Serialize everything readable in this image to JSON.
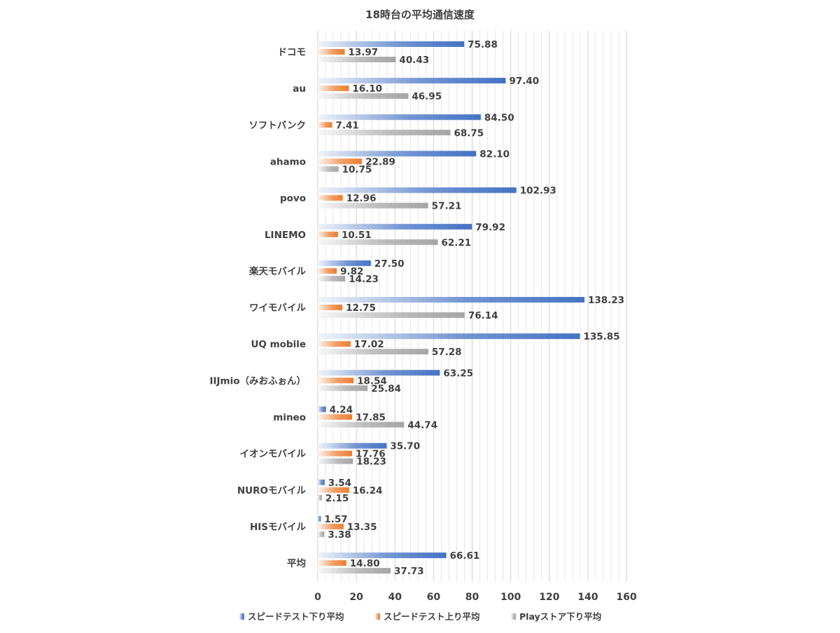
{
  "chart_data": {
    "type": "bar",
    "orientation": "horizontal",
    "title": "18時台の平均通信速度",
    "xlabel": "",
    "ylabel": "",
    "xlim": [
      0,
      160
    ],
    "x_ticks": [
      "0",
      "20",
      "40",
      "60",
      "80",
      "100",
      "120",
      "140",
      "160"
    ],
    "grid": true,
    "legend_position": "bottom",
    "categories": [
      "ドコモ",
      "au",
      "ソフトバンク",
      "ahamo",
      "povo",
      "LINEMO",
      "楽天モバイル",
      "ワイモバイル",
      "UQ mobile",
      "IIJmio（みおふぉん）",
      "mineo",
      "イオンモバイル",
      "NUROモバイル",
      "HISモバイル",
      "平均"
    ],
    "series": [
      {
        "name": "スピードテスト下り平均",
        "color": "#4472C4",
        "values": [
          75.88,
          97.4,
          84.5,
          82.1,
          102.93,
          79.92,
          27.5,
          138.23,
          135.85,
          63.25,
          4.24,
          35.7,
          3.54,
          1.57,
          66.61
        ],
        "labels": [
          "75.88",
          "97.40",
          "84.50",
          "82.10",
          "102.93",
          "79.92",
          "27.50",
          "138.23",
          "135.85",
          "63.25",
          "4.24",
          "35.70",
          "3.54",
          "1.57",
          "66.61"
        ]
      },
      {
        "name": "スピードテスト上り平均",
        "color": "#ED7D31",
        "values": [
          13.97,
          16.1,
          7.41,
          22.89,
          12.96,
          10.51,
          9.82,
          12.75,
          17.02,
          18.54,
          17.85,
          17.76,
          16.24,
          13.35,
          14.8
        ],
        "labels": [
          "13.97",
          "16.10",
          "7.41",
          "22.89",
          "12.96",
          "10.51",
          "9.82",
          "12.75",
          "17.02",
          "18.54",
          "17.85",
          "17.76",
          "16.24",
          "13.35",
          "14.80"
        ]
      },
      {
        "name": "Playストア下り平均",
        "color": "#A5A5A5",
        "values": [
          40.43,
          46.95,
          68.75,
          10.75,
          57.21,
          62.21,
          14.23,
          76.14,
          57.28,
          25.84,
          44.74,
          18.23,
          2.15,
          3.38,
          37.73
        ],
        "labels": [
          "40.43",
          "46.95",
          "68.75",
          "10.75",
          "57.21",
          "62.21",
          "14.23",
          "76.14",
          "57.28",
          "25.84",
          "44.74",
          "18.23",
          "2.15",
          "3.38",
          "37.73"
        ]
      }
    ]
  }
}
